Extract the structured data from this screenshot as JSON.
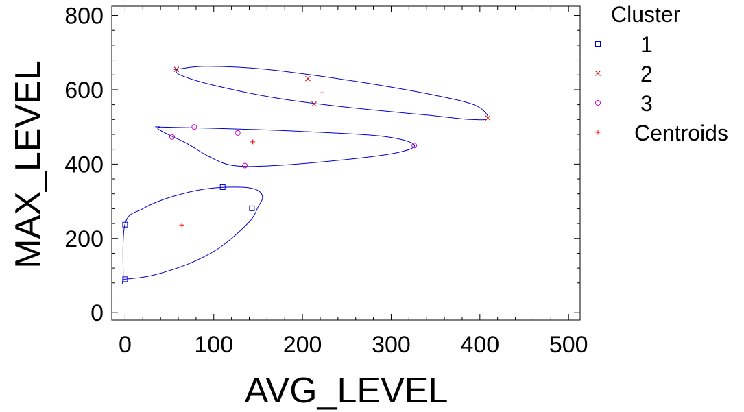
{
  "chart_data": {
    "type": "scatter",
    "title": "",
    "xlabel": "AVG_LEVEL",
    "ylabel": "MAX_LEVEL",
    "xlim": [
      -15,
      513
    ],
    "ylim": [
      -20,
      825
    ],
    "x_ticks": [
      "0",
      "100",
      "200",
      "300",
      "400",
      "500"
    ],
    "y_ticks": [
      "0",
      "200",
      "400",
      "600",
      "800"
    ],
    "grid": false,
    "legend": {
      "title": "Cluster",
      "placement": "right",
      "entries": [
        "1",
        "2",
        "3",
        "Centroids"
      ]
    },
    "series": [
      {
        "name": "1",
        "marker": "square",
        "color": "#0000cc",
        "points": [
          [
            0,
            90
          ],
          [
            0,
            237
          ],
          [
            110,
            338
          ],
          [
            143,
            281
          ]
        ]
      },
      {
        "name": "2",
        "marker": "x",
        "color": "#cc0000",
        "points": [
          [
            58,
            655
          ],
          [
            206,
            630
          ],
          [
            213,
            562
          ],
          [
            409,
            524
          ]
        ]
      },
      {
        "name": "3",
        "marker": "circle",
        "color": "#cc00cc",
        "points": [
          [
            53,
            473
          ],
          [
            78,
            500
          ],
          [
            127,
            484
          ],
          [
            135,
            396
          ],
          [
            326,
            450
          ]
        ]
      },
      {
        "name": "Centroids",
        "marker": "plus",
        "color": "#ff0000",
        "points": [
          [
            64,
            236
          ],
          [
            144,
            460
          ],
          [
            222,
            592
          ]
        ]
      }
    ],
    "ellipse_color": "#0000cc",
    "ellipses": [
      [
        [
          0,
          90
        ],
        [
          30,
          100
        ],
        [
          70,
          130
        ],
        [
          100,
          165
        ],
        [
          120,
          200
        ],
        [
          142,
          250
        ],
        [
          150,
          285
        ],
        [
          155,
          310
        ],
        [
          149,
          330
        ],
        [
          130,
          338
        ],
        [
          90,
          333
        ],
        [
          50,
          310
        ],
        [
          20,
          280
        ],
        [
          0,
          240
        ],
        [
          -2,
          90
        ]
      ],
      [
        [
          40,
          500
        ],
        [
          120,
          495
        ],
        [
          200,
          488
        ],
        [
          290,
          475
        ],
        [
          326,
          452
        ],
        [
          305,
          430
        ],
        [
          240,
          410
        ],
        [
          160,
          395
        ],
        [
          120,
          397
        ],
        [
          95,
          420
        ],
        [
          70,
          455
        ],
        [
          50,
          478
        ],
        [
          37,
          495
        ],
        [
          40,
          500
        ]
      ],
      [
        [
          58,
          655
        ],
        [
          90,
          663
        ],
        [
          150,
          657
        ],
        [
          210,
          640
        ],
        [
          280,
          615
        ],
        [
          350,
          585
        ],
        [
          395,
          558
        ],
        [
          409,
          524
        ],
        [
          390,
          520
        ],
        [
          340,
          532
        ],
        [
          250,
          553
        ],
        [
          170,
          578
        ],
        [
          100,
          612
        ],
        [
          62,
          640
        ],
        [
          58,
          655
        ]
      ]
    ]
  }
}
